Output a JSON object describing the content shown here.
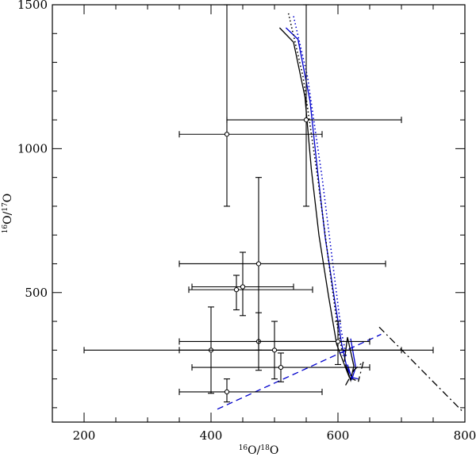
{
  "chart_data": {
    "type": "scatter",
    "xlabel": "16O/18O",
    "ylabel": "16O/17O",
    "xlim": [
      150,
      800
    ],
    "ylim": [
      50,
      1500
    ],
    "x_major_ticks": [
      200,
      400,
      600,
      800
    ],
    "y_major_ticks": [
      500,
      1000,
      1500
    ],
    "x_minor_step": 50,
    "y_minor_step": 100,
    "grid": false,
    "points": [
      {
        "x": 425,
        "y": 1050,
        "xerr": [
          350,
          575
        ],
        "yerr": [
          800,
          1500
        ]
      },
      {
        "x": 550,
        "y": 1100,
        "xerr": [
          425,
          700
        ],
        "yerr": [
          800,
          1500
        ]
      },
      {
        "x": 475,
        "y": 600,
        "xerr": [
          350,
          675
        ],
        "yerr": [
          300,
          900
        ]
      },
      {
        "x": 450,
        "y": 520,
        "xerr": [
          370,
          530
        ],
        "yerr": [
          420,
          640
        ]
      },
      {
        "x": 440,
        "y": 510,
        "xerr": [
          365,
          560
        ],
        "yerr": [
          440,
          560
        ]
      },
      {
        "x": 475,
        "y": 330,
        "xerr": [
          350,
          600
        ],
        "yerr": [
          230,
          430
        ]
      },
      {
        "x": 400,
        "y": 300,
        "xerr": [
          200,
          700
        ],
        "yerr": [
          150,
          450
        ]
      },
      {
        "x": 500,
        "y": 300,
        "xerr": [
          350,
          750
        ],
        "yerr": [
          200,
          400
        ]
      },
      {
        "x": 510,
        "y": 240,
        "xerr": [
          370,
          650
        ],
        "yerr": [
          190,
          290
        ]
      },
      {
        "x": 425,
        "y": 155,
        "xerr": [
          350,
          575
        ],
        "yerr": [
          120,
          200
        ]
      },
      {
        "x": 600,
        "y": 330,
        "xerr": [
          475,
          650
        ],
        "yerr": [
          250,
          400
        ]
      }
    ],
    "series": [
      {
        "style": "solid",
        "color": "#000000",
        "points": [
          [
            508,
            1420
          ],
          [
            530,
            1370
          ],
          [
            548,
            1180
          ],
          [
            558,
            930
          ],
          [
            570,
            700
          ],
          [
            585,
            490
          ],
          [
            598,
            320
          ],
          [
            610,
            250
          ],
          [
            618,
            205
          ],
          [
            628,
            195
          ]
        ]
      },
      {
        "style": "solid",
        "color": "#0000cc",
        "points": [
          [
            518,
            1420
          ],
          [
            537,
            1380
          ],
          [
            556,
            1165
          ],
          [
            568,
            920
          ],
          [
            580,
            690
          ],
          [
            595,
            470
          ],
          [
            606,
            320
          ],
          [
            614,
            240
          ],
          [
            622,
            205
          ],
          [
            632,
            200
          ]
        ]
      },
      {
        "style": "dotted",
        "color": "#000000",
        "points": [
          [
            522,
            1470
          ],
          [
            545,
            1250
          ],
          [
            568,
            900
          ],
          [
            587,
            580
          ],
          [
            600,
            370
          ],
          [
            608,
            280
          ]
        ]
      },
      {
        "style": "dotted",
        "color": "#0000cc",
        "points": [
          [
            530,
            1460
          ],
          [
            552,
            1250
          ],
          [
            575,
            900
          ],
          [
            593,
            580
          ],
          [
            605,
            370
          ],
          [
            613,
            280
          ]
        ]
      },
      {
        "style": "dashed",
        "color": "#0000cc",
        "points": [
          [
            410,
            95
          ],
          [
            668,
            355
          ]
        ]
      },
      {
        "style": "dashdot",
        "color": "#000000",
        "points": [
          [
            665,
            380
          ],
          [
            795,
            90
          ]
        ]
      },
      {
        "style": "solid",
        "color": "#000000",
        "points": [
          [
            612,
            250
          ],
          [
            620,
            195
          ],
          [
            625,
            245
          ],
          [
            615,
            345
          ],
          [
            610,
            260
          ]
        ]
      },
      {
        "style": "solid",
        "color": "#0000cc",
        "points": [
          [
            615,
            250
          ],
          [
            622,
            200
          ],
          [
            628,
            240
          ],
          [
            620,
            340
          ]
        ]
      },
      {
        "style": "dashdot",
        "color": "#000000",
        "points": [
          [
            612,
            178
          ],
          [
            625,
            230
          ],
          [
            640,
            260
          ],
          [
            632,
            190
          ]
        ]
      }
    ]
  }
}
